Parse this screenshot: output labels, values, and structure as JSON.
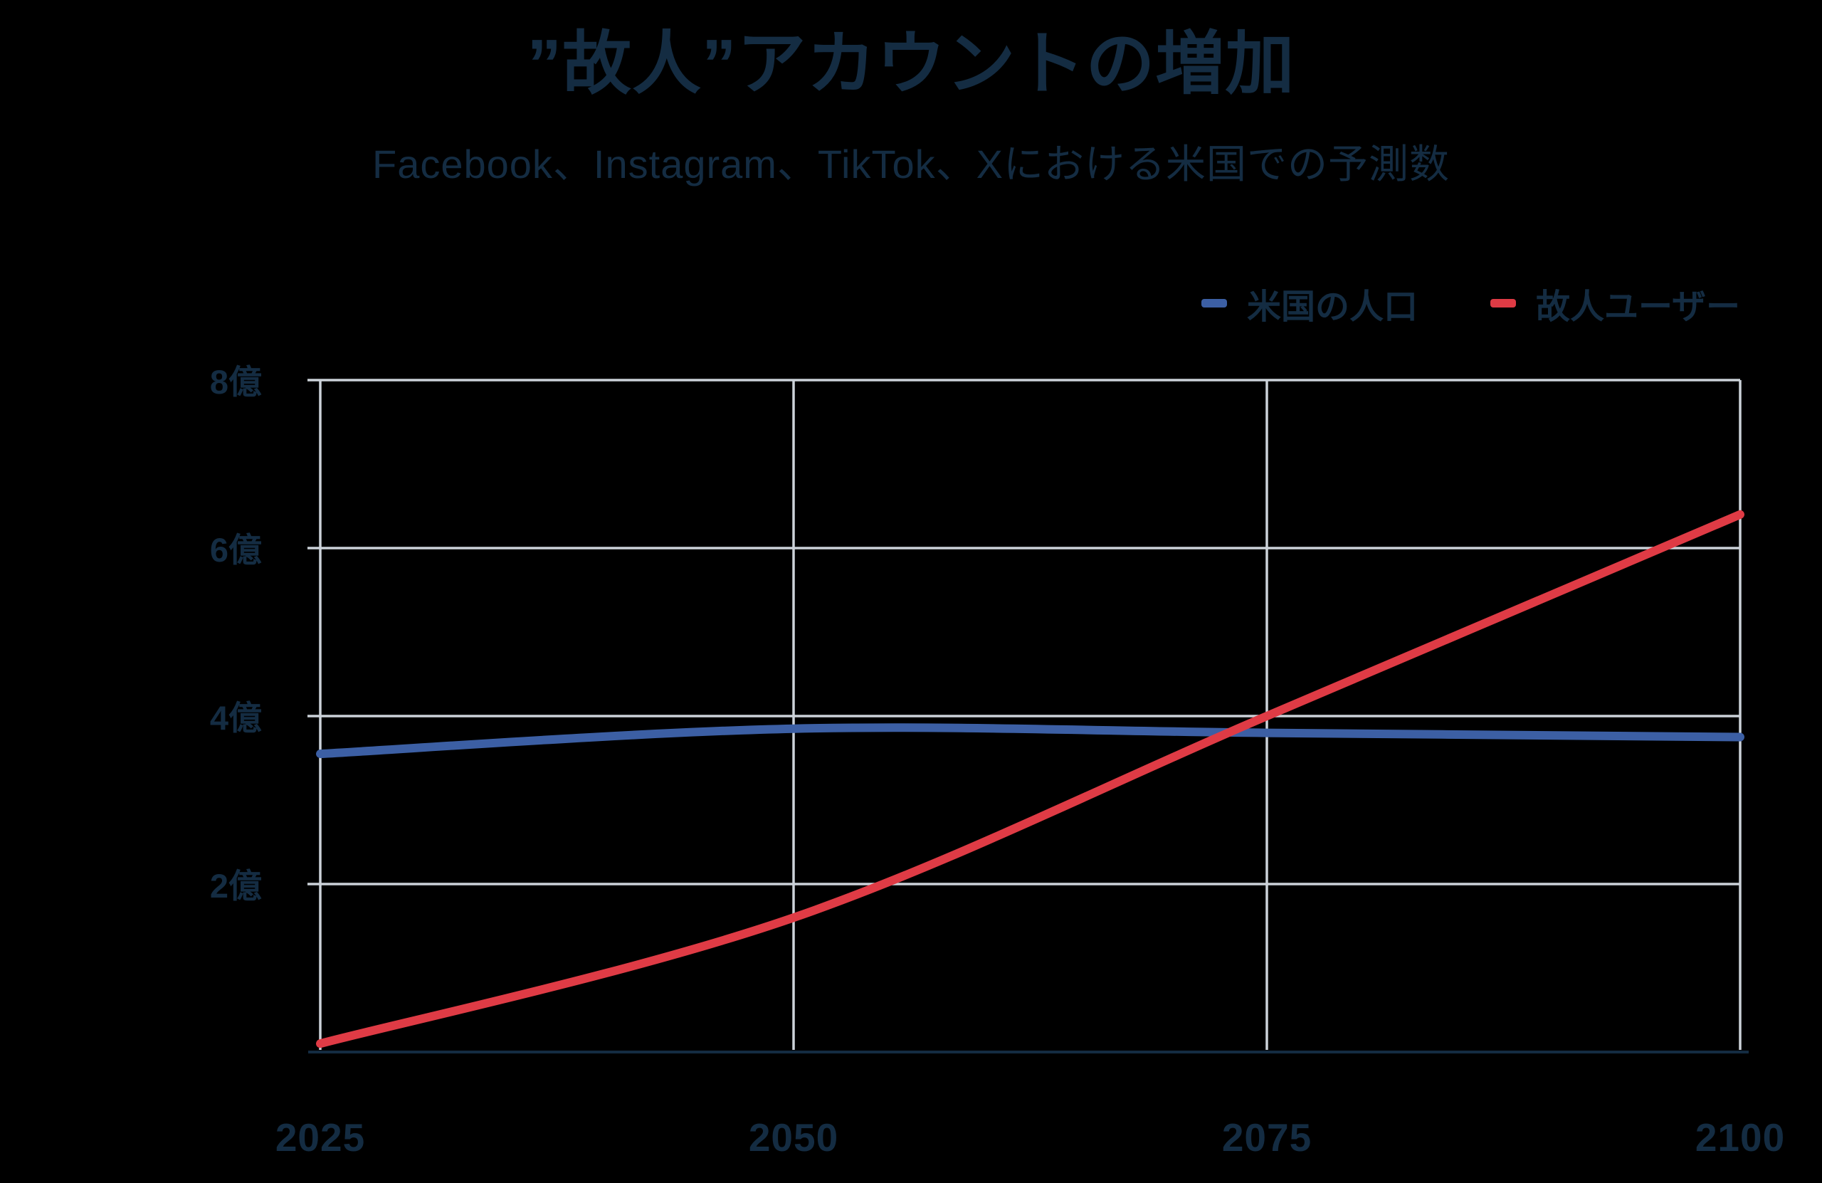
{
  "title": "”故人”アカウントの増加",
  "subtitle": "Facebook、Instagram、TikTok、Xにおける米国での予測数",
  "legend": {
    "items": [
      {
        "id": "us-population",
        "label": "米国の人口",
        "color": "#3c5fa4"
      },
      {
        "id": "deceased-users",
        "label": "故人ユーザー",
        "color": "#df3b45"
      }
    ]
  },
  "colors": {
    "background": "#000000",
    "text": "#142c42",
    "grid": "#ccd2d9",
    "axis": "#142c42",
    "us_population_line": "#3c5fa4",
    "deceased_users_line": "#df3b45"
  },
  "chart_data": {
    "type": "line",
    "x": [
      2025,
      2050,
      2075,
      2100
    ],
    "x_tick_labels": [
      "2025",
      "2050",
      "2075",
      "2100"
    ],
    "y_ticks": [
      {
        "value": 2,
        "label": "2億"
      },
      {
        "value": 4,
        "label": "4億"
      },
      {
        "value": 6,
        "label": "6億"
      },
      {
        "value": 8,
        "label": "8億"
      }
    ],
    "ylim": [
      0,
      8
    ],
    "y_unit": "億",
    "grid": true,
    "legend_position": "top-right",
    "series": [
      {
        "id": "us-population",
        "name": "米国の人口",
        "color": "#3c5fa4",
        "values": [
          3.55,
          3.85,
          3.8,
          3.75
        ]
      },
      {
        "id": "deceased-users",
        "name": "故人ユーザー",
        "color": "#df3b45",
        "values": [
          0.1,
          1.6,
          4.0,
          6.4
        ]
      }
    ]
  }
}
